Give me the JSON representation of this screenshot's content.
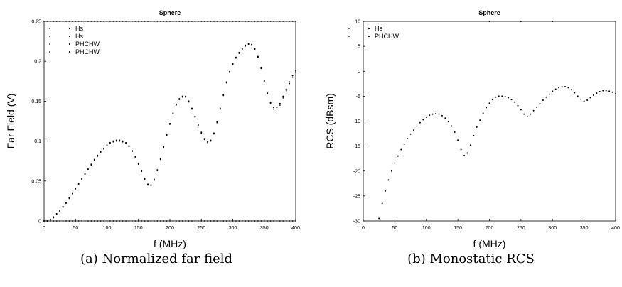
{
  "panels": [
    {
      "caption": "(a) Normalized far field",
      "chart_data": {
        "type": "scatter",
        "title": "Sphere",
        "xlabel": "f (MHz)",
        "ylabel": "Far Field (V)",
        "xlim": [
          0,
          400
        ],
        "ylim": [
          0,
          0.25
        ],
        "xticks": [
          0,
          50,
          100,
          150,
          200,
          250,
          300,
          350,
          400
        ],
        "xtick_labels": [
          "0",
          "50",
          "100",
          "150",
          "200",
          "250",
          "300",
          "350",
          "400"
        ],
        "yticks": [
          0,
          0.05,
          0.1,
          0.15,
          0.2,
          0.25
        ],
        "ytick_labels": [
          "0",
          "0.05",
          "0.1",
          "0.15",
          "0.2",
          "0.25"
        ],
        "legend_position": "top-left",
        "legend": [
          "Hs",
          "Hs",
          "PHCHW",
          "PHCHW"
        ],
        "series": [
          {
            "name": "PHCHW",
            "x": [
              0,
              5,
              10,
              15,
              20,
              25,
              30,
              35,
              40,
              45,
              50,
              55,
              60,
              65,
              70,
              75,
              80,
              85,
              90,
              95,
              100,
              105,
              110,
              115,
              120,
              125,
              130,
              135,
              140,
              145,
              150,
              155,
              160,
              165,
              170,
              175,
              180,
              185,
              190,
              195,
              200,
              205,
              210,
              215,
              220,
              225,
              230,
              235,
              240,
              245,
              250,
              255,
              260,
              265,
              270,
              275,
              280,
              285,
              290,
              295,
              300,
              305,
              310,
              315,
              320,
              325,
              330,
              335,
              340,
              345,
              350,
              355,
              360,
              365,
              370,
              375,
              380,
              385,
              390,
              395,
              400
            ],
            "y": [
              0.0,
              0.0,
              0.002,
              0.005,
              0.009,
              0.013,
              0.018,
              0.023,
              0.029,
              0.035,
              0.041,
              0.047,
              0.053,
              0.059,
              0.065,
              0.071,
              0.077,
              0.082,
              0.087,
              0.091,
              0.095,
              0.098,
              0.1,
              0.101,
              0.101,
              0.1,
              0.098,
              0.094,
              0.088,
              0.081,
              0.072,
              0.063,
              0.053,
              0.046,
              0.045,
              0.052,
              0.064,
              0.078,
              0.093,
              0.108,
              0.122,
              0.135,
              0.146,
              0.153,
              0.156,
              0.156,
              0.15,
              0.141,
              0.131,
              0.121,
              0.111,
              0.103,
              0.099,
              0.101,
              0.11,
              0.124,
              0.141,
              0.158,
              0.174,
              0.187,
              0.197,
              0.205,
              0.211,
              0.216,
              0.22,
              0.222,
              0.221,
              0.216,
              0.206,
              0.192,
              0.176,
              0.16,
              0.148,
              0.142,
              0.142,
              0.147,
              0.156,
              0.165,
              0.174,
              0.182,
              0.188
            ]
          },
          {
            "name": "Hs",
            "x": [
              0,
              5,
              10,
              15,
              20,
              25,
              30,
              35,
              40,
              45,
              50,
              55,
              60,
              65,
              70,
              75,
              80,
              85,
              90,
              95,
              100,
              105,
              110,
              115,
              120,
              125,
              130,
              135,
              140,
              145,
              150,
              155,
              160,
              165,
              170,
              175,
              180,
              185,
              190,
              195,
              200,
              205,
              210,
              215,
              220,
              225,
              230,
              235,
              240,
              245,
              250,
              255,
              260,
              265,
              270,
              275,
              280,
              285,
              290,
              295,
              300,
              305,
              310,
              315,
              320,
              325,
              330,
              335,
              340,
              345,
              350,
              355,
              360,
              365,
              370,
              375,
              380,
              385,
              390,
              395,
              400
            ],
            "y": [
              0.0,
              0.0,
              0.001,
              0.004,
              0.008,
              0.012,
              0.017,
              0.022,
              0.028,
              0.034,
              0.04,
              0.046,
              0.052,
              0.058,
              0.064,
              0.07,
              0.076,
              0.081,
              0.086,
              0.09,
              0.094,
              0.097,
              0.099,
              0.1,
              0.1,
              0.099,
              0.097,
              0.093,
              0.087,
              0.08,
              0.071,
              0.062,
              0.052,
              0.045,
              0.044,
              0.051,
              0.063,
              0.077,
              0.092,
              0.107,
              0.121,
              0.134,
              0.145,
              0.152,
              0.155,
              0.155,
              0.149,
              0.14,
              0.13,
              0.12,
              0.11,
              0.102,
              0.098,
              0.1,
              0.109,
              0.123,
              0.14,
              0.157,
              0.173,
              0.186,
              0.196,
              0.204,
              0.21,
              0.215,
              0.219,
              0.221,
              0.22,
              0.215,
              0.205,
              0.191,
              0.175,
              0.159,
              0.147,
              0.14,
              0.14,
              0.145,
              0.154,
              0.163,
              0.172,
              0.18,
              0.186
            ]
          },
          {
            "name": "Hs",
            "x": [
              0,
              5,
              10,
              15,
              20,
              25,
              30,
              35,
              40,
              45,
              50,
              55,
              60,
              65,
              70,
              75,
              80,
              85,
              90,
              95,
              100,
              105,
              110,
              115,
              120,
              125,
              130,
              135,
              140,
              145,
              150,
              155,
              160,
              165,
              170,
              175,
              180,
              185,
              190,
              195,
              200,
              205,
              210,
              215,
              220,
              225,
              230,
              235,
              240,
              245,
              250,
              255,
              260,
              265,
              270,
              275,
              280,
              285,
              290,
              295,
              300,
              305,
              310,
              315,
              320,
              325,
              330,
              335,
              340,
              345,
              350,
              355,
              360,
              365,
              370,
              375,
              380,
              385,
              390,
              395,
              400
            ],
            "y": [
              0,
              0,
              0,
              0,
              0,
              0,
              0,
              0,
              0,
              0,
              0,
              0,
              0,
              0,
              0,
              0,
              0,
              0,
              0,
              0,
              0,
              0,
              0,
              0,
              0,
              0,
              0,
              0,
              0,
              0,
              0,
              0,
              0,
              0,
              0,
              0,
              0,
              0,
              0,
              0,
              0,
              0,
              0,
              0,
              0,
              0,
              0,
              0,
              0,
              0,
              0,
              0,
              0,
              0,
              0,
              0,
              0,
              0,
              0,
              0,
              0,
              0,
              0,
              0,
              0,
              0,
              0,
              0,
              0,
              0,
              0,
              0,
              0,
              0,
              0,
              0,
              0,
              0,
              0,
              0,
              0
            ]
          },
          {
            "name": "PHCHW",
            "x": [
              0,
              5,
              10,
              15,
              20,
              25,
              30,
              35,
              40,
              45,
              50,
              55,
              60,
              65,
              70,
              75,
              80,
              85,
              90,
              95,
              100,
              105,
              110,
              115,
              120,
              125,
              130,
              135,
              140,
              145,
              150,
              155,
              160,
              165,
              170,
              175,
              180,
              185,
              190,
              195,
              200,
              205,
              210,
              215,
              220,
              225,
              230,
              235,
              240,
              245,
              250,
              255,
              260,
              265,
              270,
              275,
              280,
              285,
              290,
              295,
              300,
              305,
              310,
              315,
              320,
              325,
              330,
              335,
              340,
              345,
              350,
              355,
              360,
              365,
              370,
              375,
              380,
              385,
              390,
              395,
              400
            ],
            "y": [
              0.25,
              0.25,
              0.25,
              0.25,
              0.25,
              0.25,
              0.25,
              0.25,
              0.25,
              0.25,
              0.25,
              0.25,
              0.25,
              0.25,
              0.25,
              0.25,
              0.25,
              0.25,
              0.25,
              0.25,
              0.25,
              0.25,
              0.25,
              0.25,
              0.25,
              0.25,
              0.25,
              0.25,
              0.25,
              0.25,
              0.25,
              0.25,
              0.25,
              0.25,
              0.25,
              0.25,
              0.25,
              0.25,
              0.25,
              0.25,
              0.25,
              0.25,
              0.25,
              0.25,
              0.25,
              0.25,
              0.25,
              0.25,
              0.25,
              0.25,
              0.25,
              0.25,
              0.25,
              0.25,
              0.25,
              0.25,
              0.25,
              0.25,
              0.25,
              0.25,
              0.25,
              0.25,
              0.25,
              0.25,
              0.25,
              0.25,
              0.25,
              0.25,
              0.25,
              0.25,
              0.25,
              0.25,
              0.25,
              0.25,
              0.25,
              0.25,
              0.25,
              0.25,
              0.25,
              0.25,
              0.25
            ]
          }
        ]
      }
    },
    {
      "caption": "(b) Monostatic RCS",
      "chart_data": {
        "type": "scatter",
        "title": "Sphere",
        "xlabel": "f (MHz)",
        "ylabel": "RCS (dBsm)",
        "xlim": [
          0,
          400
        ],
        "ylim": [
          -30,
          10
        ],
        "xticks": [
          0,
          50,
          100,
          150,
          200,
          250,
          300,
          350,
          400
        ],
        "xtick_labels": [
          "0",
          "50",
          "100",
          "150",
          "200",
          "250",
          "300",
          "350",
          "400"
        ],
        "yticks": [
          -30,
          -25,
          -20,
          -15,
          -10,
          -5,
          0,
          5,
          10
        ],
        "ytick_labels": [
          "-30",
          "-25",
          "-20",
          "-15",
          "-10",
          "-5",
          "0",
          "5",
          "10"
        ],
        "legend_position": "top-left",
        "legend": [
          "Hs",
          "PHCHW"
        ],
        "series": [
          {
            "name": "PHCHW",
            "x": [
              25,
              30,
              35,
              40,
              45,
              50,
              55,
              60,
              65,
              70,
              75,
              80,
              85,
              90,
              95,
              100,
              105,
              110,
              115,
              120,
              125,
              130,
              135,
              140,
              145,
              150,
              155,
              160,
              165,
              170,
              175,
              180,
              185,
              190,
              195,
              200,
              205,
              210,
              215,
              220,
              225,
              230,
              235,
              240,
              245,
              250,
              255,
              260,
              265,
              270,
              275,
              280,
              285,
              290,
              295,
              300,
              305,
              310,
              315,
              320,
              325,
              330,
              335,
              340,
              345,
              350,
              355,
              360,
              365,
              370,
              375,
              380,
              385,
              390,
              395,
              400
            ],
            "y": [
              -29.5,
              -26.5,
              -24.0,
              -21.8,
              -20.0,
              -18.4,
              -17.0,
              -15.7,
              -14.6,
              -13.5,
              -12.6,
              -11.8,
              -11.0,
              -10.3,
              -9.7,
              -9.2,
              -8.8,
              -8.6,
              -8.5,
              -8.6,
              -8.9,
              -9.4,
              -10.1,
              -11.0,
              -12.2,
              -13.8,
              -15.7,
              -16.9,
              -16.4,
              -14.8,
              -12.9,
              -11.2,
              -9.8,
              -8.4,
              -7.3,
              -6.4,
              -5.7,
              -5.2,
              -5.0,
              -5.0,
              -5.1,
              -5.3,
              -5.7,
              -6.2,
              -6.9,
              -7.7,
              -8.6,
              -9.1,
              -8.6,
              -7.9,
              -7.2,
              -6.5,
              -5.8,
              -5.2,
              -4.6,
              -4.0,
              -3.6,
              -3.3,
              -3.1,
              -3.1,
              -3.3,
              -3.7,
              -4.3,
              -5.0,
              -5.6,
              -6.0,
              -5.8,
              -5.3,
              -4.8,
              -4.4,
              -4.1,
              -3.9,
              -3.9,
              -4.0,
              -4.2,
              -4.5
            ]
          },
          {
            "name": "Hs",
            "x": [
              200,
              250,
              300
            ],
            "y": [
              10,
              10,
              10
            ]
          }
        ]
      }
    }
  ]
}
